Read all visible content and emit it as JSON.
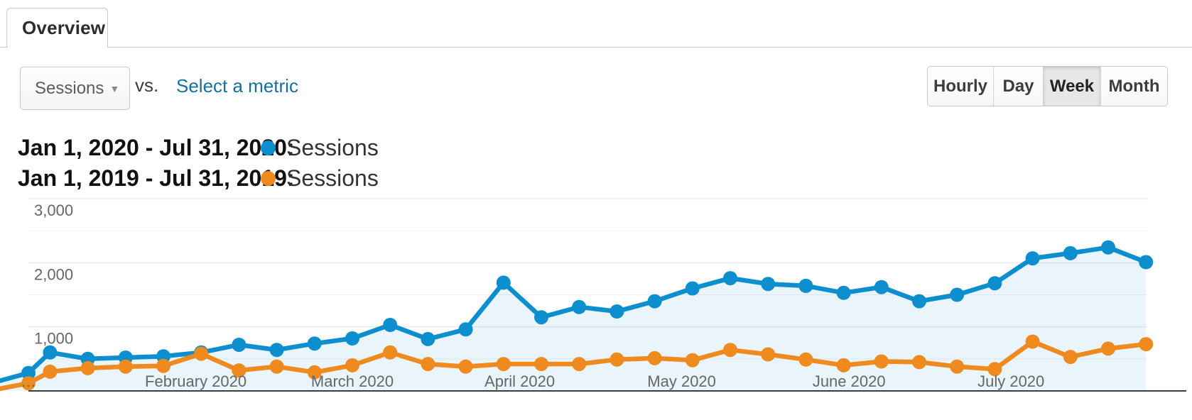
{
  "tab": {
    "label": "Overview"
  },
  "controls": {
    "metric_selector_value": "Sessions",
    "vs_label": "vs.",
    "select_metric_link": "Select a metric",
    "granularity": {
      "options": [
        "Hourly",
        "Day",
        "Week",
        "Month"
      ],
      "selected": "Week"
    }
  },
  "legend": [
    {
      "date_range": "Jan 1, 2020 - Jul 31, 2020:",
      "metric": "Sessions",
      "color": "#0d8ecf"
    },
    {
      "date_range": "Jan 1, 2019 - Jul 31, 2019:",
      "metric": "Sessions",
      "color": "#ee8a1e"
    }
  ],
  "chart_data": {
    "type": "line",
    "title": "",
    "xlabel": "",
    "ylabel": "",
    "grid": "horizontal",
    "legend_position": "above-left",
    "ylim": [
      0,
      3200
    ],
    "y_ticks": [
      {
        "value": 1000,
        "label": "1,000"
      },
      {
        "value": 2000,
        "label": "2,000"
      },
      {
        "value": 3000,
        "label": "3,000"
      }
    ],
    "y_minor_ticks": [
      500,
      1500,
      2500
    ],
    "x_ticks": [
      {
        "day": 0,
        "label": "…"
      },
      {
        "day": 31,
        "label": "February 2020"
      },
      {
        "day": 60,
        "label": "March 2020"
      },
      {
        "day": 91,
        "label": "April 2020"
      },
      {
        "day": 121,
        "label": "May 2020"
      },
      {
        "day": 152,
        "label": "June 2020"
      },
      {
        "day": 182,
        "label": "July 2020"
      }
    ],
    "x_days": [
      0,
      4,
      11,
      18,
      25,
      32,
      39,
      46,
      53,
      60,
      67,
      74,
      81,
      88,
      95,
      102,
      109,
      116,
      123,
      130,
      137,
      144,
      151,
      158,
      165,
      172,
      179,
      186,
      193,
      200,
      207
    ],
    "series": [
      {
        "name": "Sessions",
        "range": "Jan 1, 2020 - Jul 31, 2020",
        "color": "#0d8ecf",
        "area": true,
        "lead_in_value": 160,
        "values": [
          280,
          600,
          500,
          520,
          540,
          600,
          720,
          640,
          740,
          820,
          1030,
          810,
          960,
          1690,
          1150,
          1310,
          1240,
          1400,
          1600,
          1760,
          1670,
          1640,
          1530,
          1620,
          1400,
          1500,
          1680,
          2070,
          2150,
          2240,
          2010
        ]
      },
      {
        "name": "Sessions",
        "range": "Jan 1, 2019 - Jul 31, 2019",
        "color": "#ee8a1e",
        "area": false,
        "lead_in_value": 35,
        "values": [
          120,
          300,
          355,
          380,
          390,
          580,
          320,
          380,
          290,
          400,
          600,
          420,
          380,
          420,
          420,
          420,
          490,
          510,
          480,
          640,
          570,
          490,
          400,
          460,
          450,
          380,
          340,
          770,
          530,
          660,
          730
        ]
      }
    ]
  },
  "colors": {
    "accent_blue": "#0d8ecf",
    "accent_orange": "#ee8a1e",
    "link_blue": "#15709d",
    "area_fill": "rgba(13,142,207,0.09)",
    "grid_major": "#e4e4e4",
    "grid_minor": "#f1f1f1",
    "axis_line": "#3c3c3c",
    "axis_text": "#666666"
  }
}
